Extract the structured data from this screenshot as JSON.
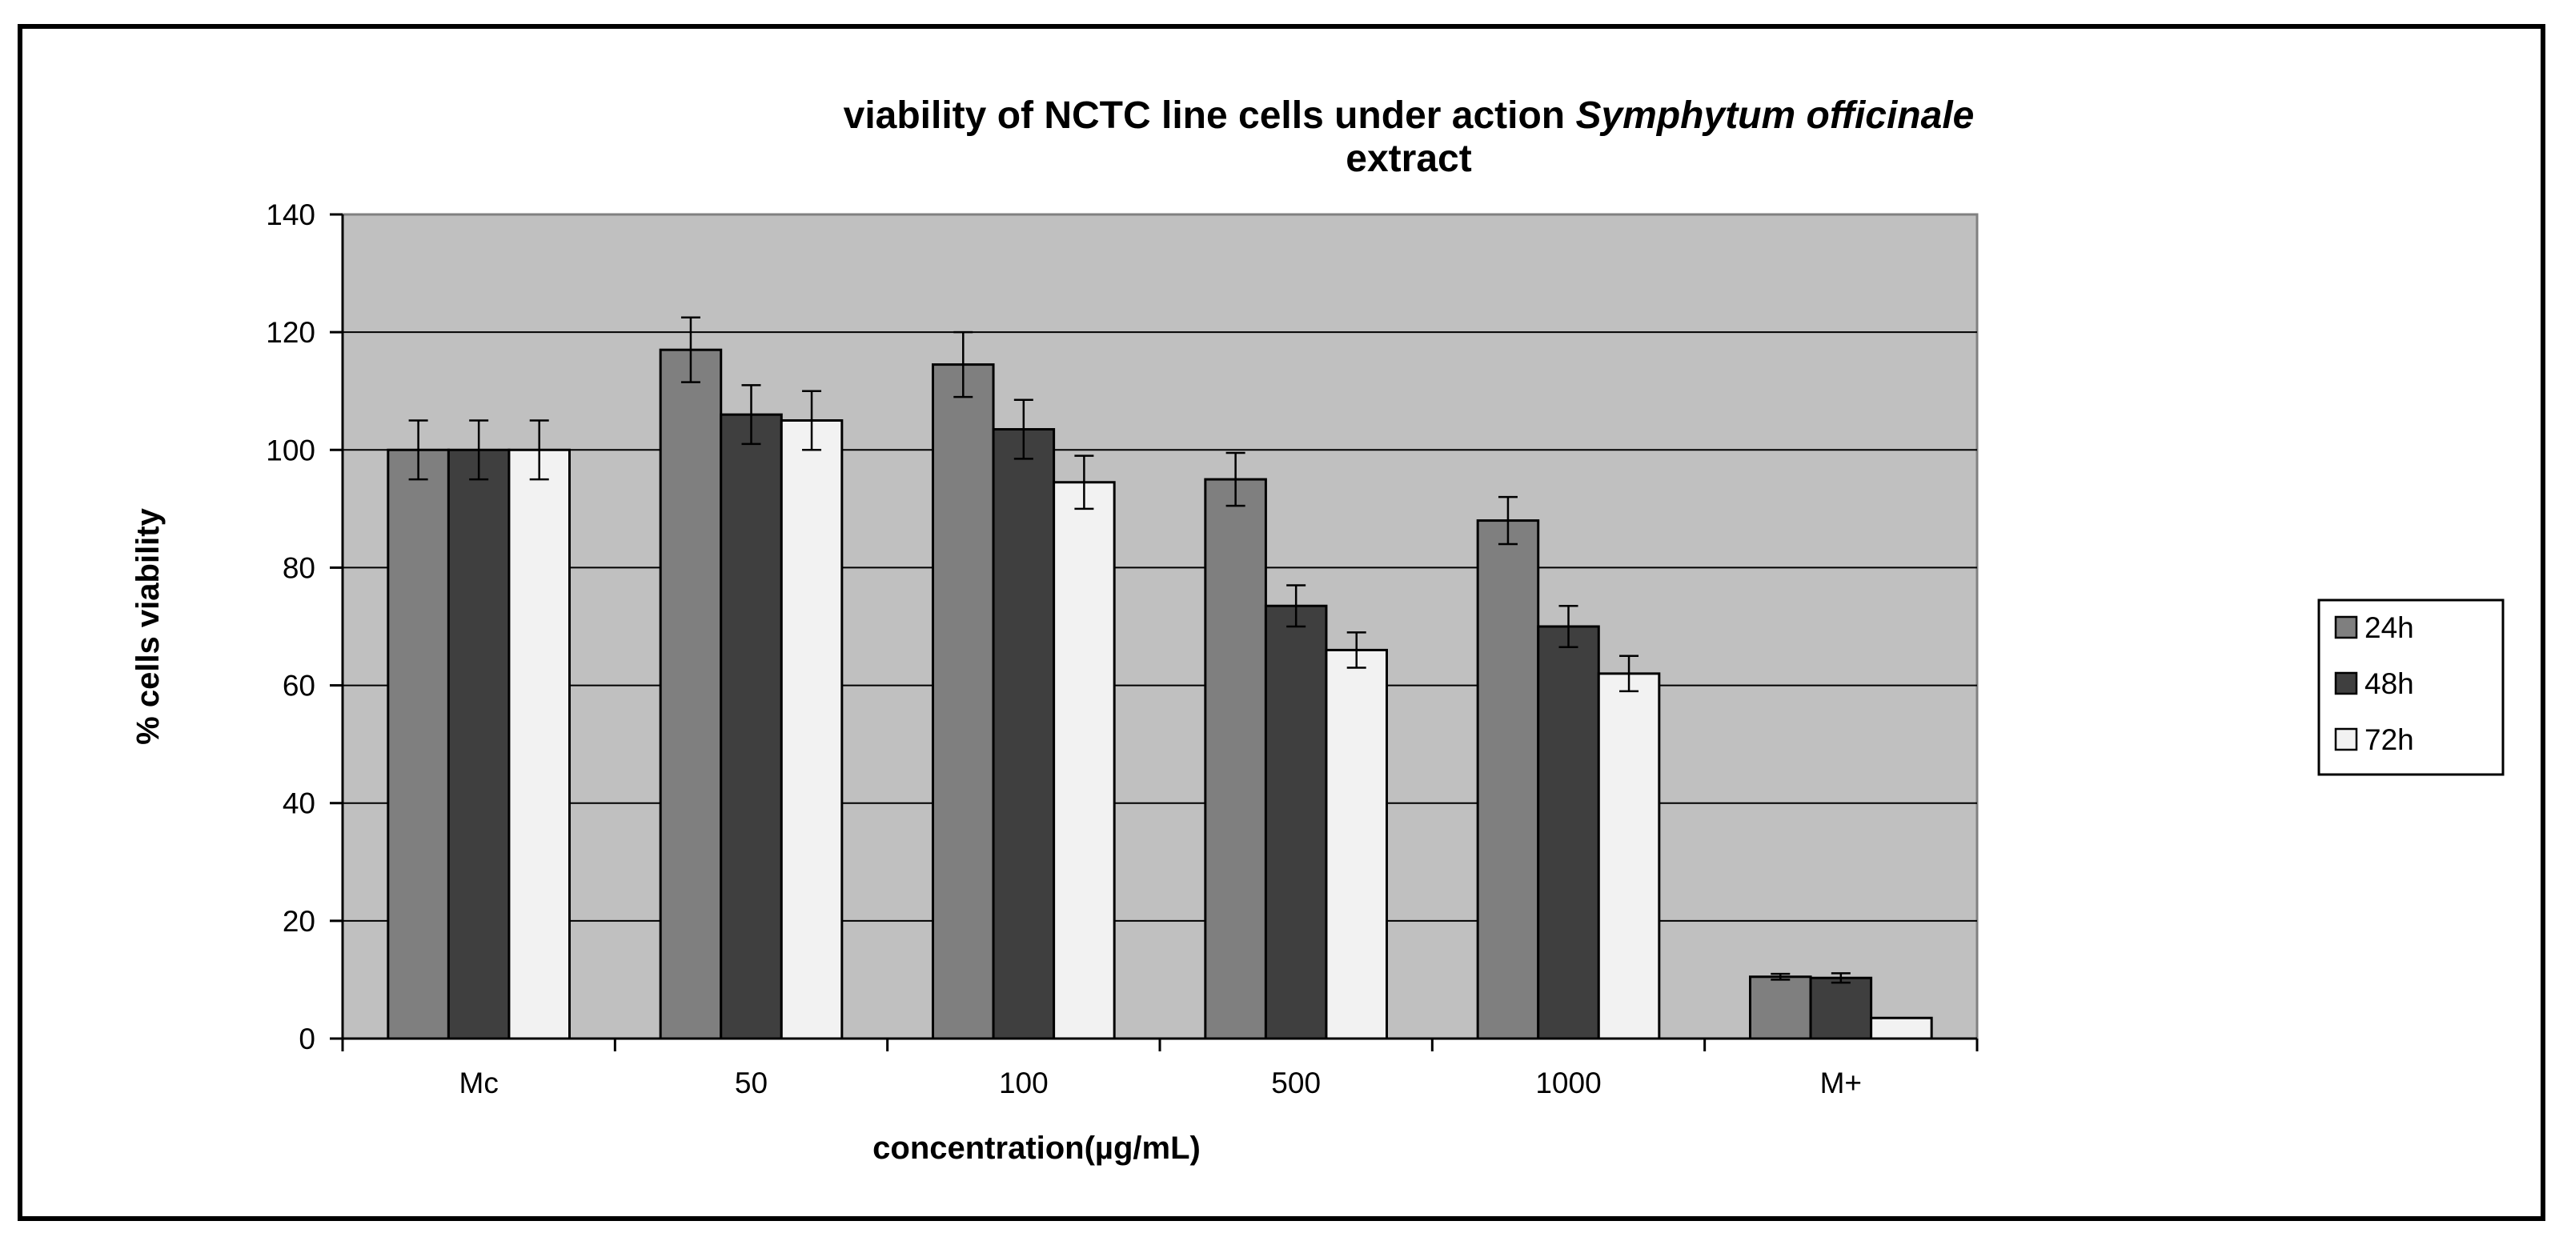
{
  "chart_data": {
    "type": "bar",
    "title_line1_plain": "viability of  NCTC line cells under action ",
    "title_line1_italic": "Symphytum  officinale",
    "title_line2": "extract",
    "xlabel": "concentration(µg/mL)",
    "ylabel": "%  cells viability",
    "ylim": [
      0,
      140
    ],
    "yticks": [
      "0",
      "20",
      "40",
      "60",
      "80",
      "100",
      "120",
      "140"
    ],
    "categories": [
      "Mc",
      "50",
      "100",
      "500",
      "1000",
      "M+"
    ],
    "grid": true,
    "legend_position": "right",
    "series": [
      {
        "name": "24h",
        "color": "#7f7f7f",
        "values": [
          100,
          117,
          114.5,
          95,
          88,
          10.5
        ],
        "errors": [
          5,
          5.5,
          5.5,
          4.5,
          4,
          0.5
        ]
      },
      {
        "name": "48h",
        "color": "#3f3f3f",
        "values": [
          100,
          106,
          103.5,
          73.5,
          70,
          10.3
        ],
        "errors": [
          5,
          5,
          5,
          3.5,
          3.5,
          0.8
        ]
      },
      {
        "name": "72h",
        "color": "#f2f2f2",
        "values": [
          100,
          105,
          94.5,
          66,
          62,
          3.5
        ],
        "errors": [
          5,
          5,
          4.5,
          3,
          3,
          0
        ]
      }
    ],
    "plot_background": "#c0c0c0"
  }
}
